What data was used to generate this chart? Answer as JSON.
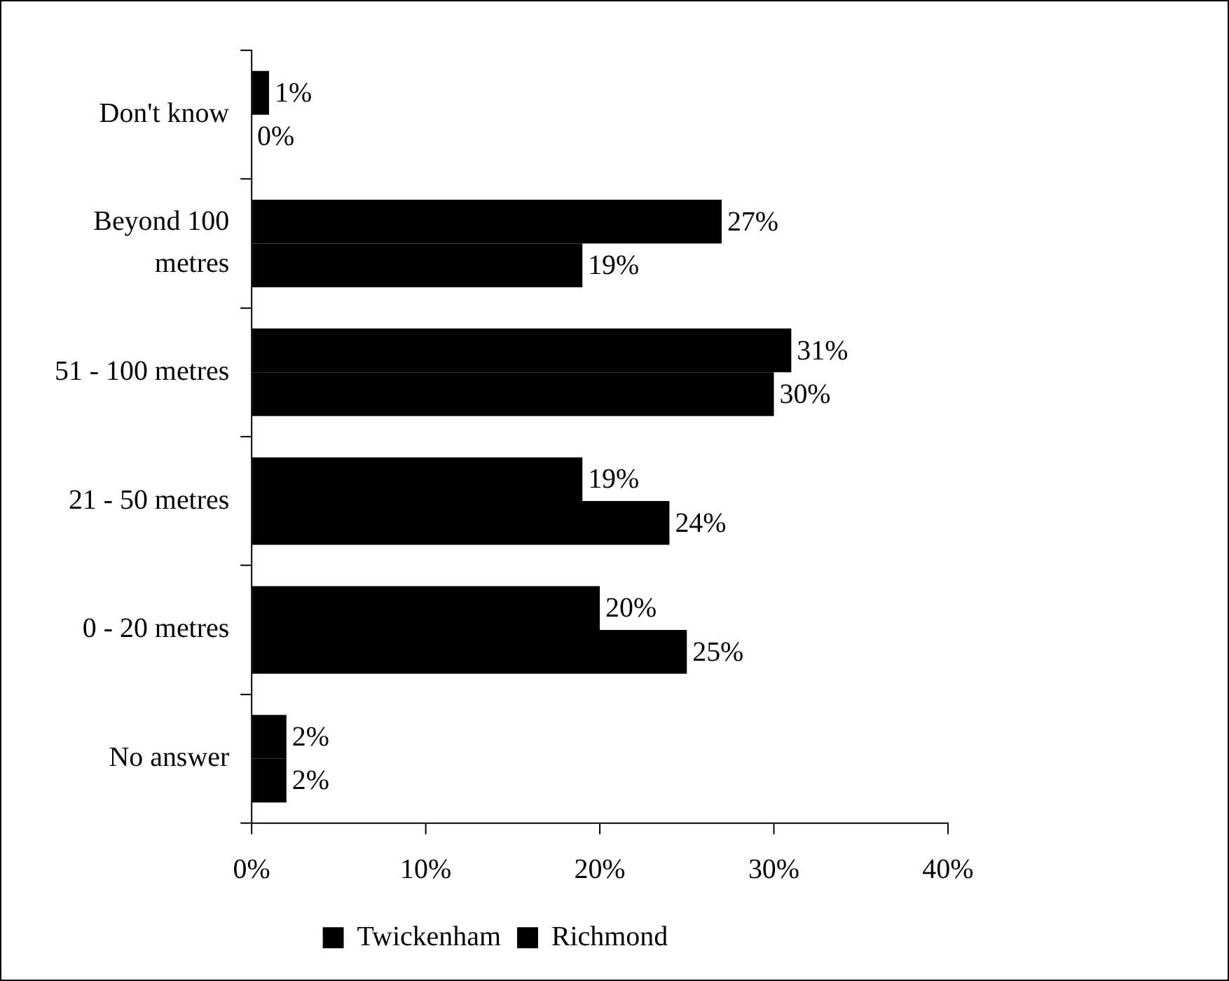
{
  "chart_data": {
    "type": "bar",
    "orientation": "horizontal",
    "categories": [
      "Don't know",
      "Beyond 100 metres",
      "51 - 100 metres",
      "21 - 50 metres",
      "0 - 20 metres",
      "No answer"
    ],
    "series": [
      {
        "name": "Twickenham",
        "color": "#000000",
        "values": [
          1,
          27,
          31,
          19,
          20,
          2
        ],
        "value_labels": [
          "1%",
          "27%",
          "31%",
          "19%",
          "20%",
          "2%"
        ]
      },
      {
        "name": "Richmond",
        "color": "#000000",
        "values": [
          0,
          19,
          30,
          24,
          25,
          2
        ],
        "value_labels": [
          "0%",
          "19%",
          "30%",
          "24%",
          "25%",
          "2%"
        ]
      }
    ],
    "xlim": [
      0,
      40
    ],
    "xticks": [
      {
        "value": 0,
        "label": "0%"
      },
      {
        "value": 10,
        "label": "10%"
      },
      {
        "value": 20,
        "label": "20%"
      },
      {
        "value": 30,
        "label": "30%"
      },
      {
        "value": 40,
        "label": "40%"
      }
    ],
    "grid": false,
    "legend": "bottom"
  }
}
